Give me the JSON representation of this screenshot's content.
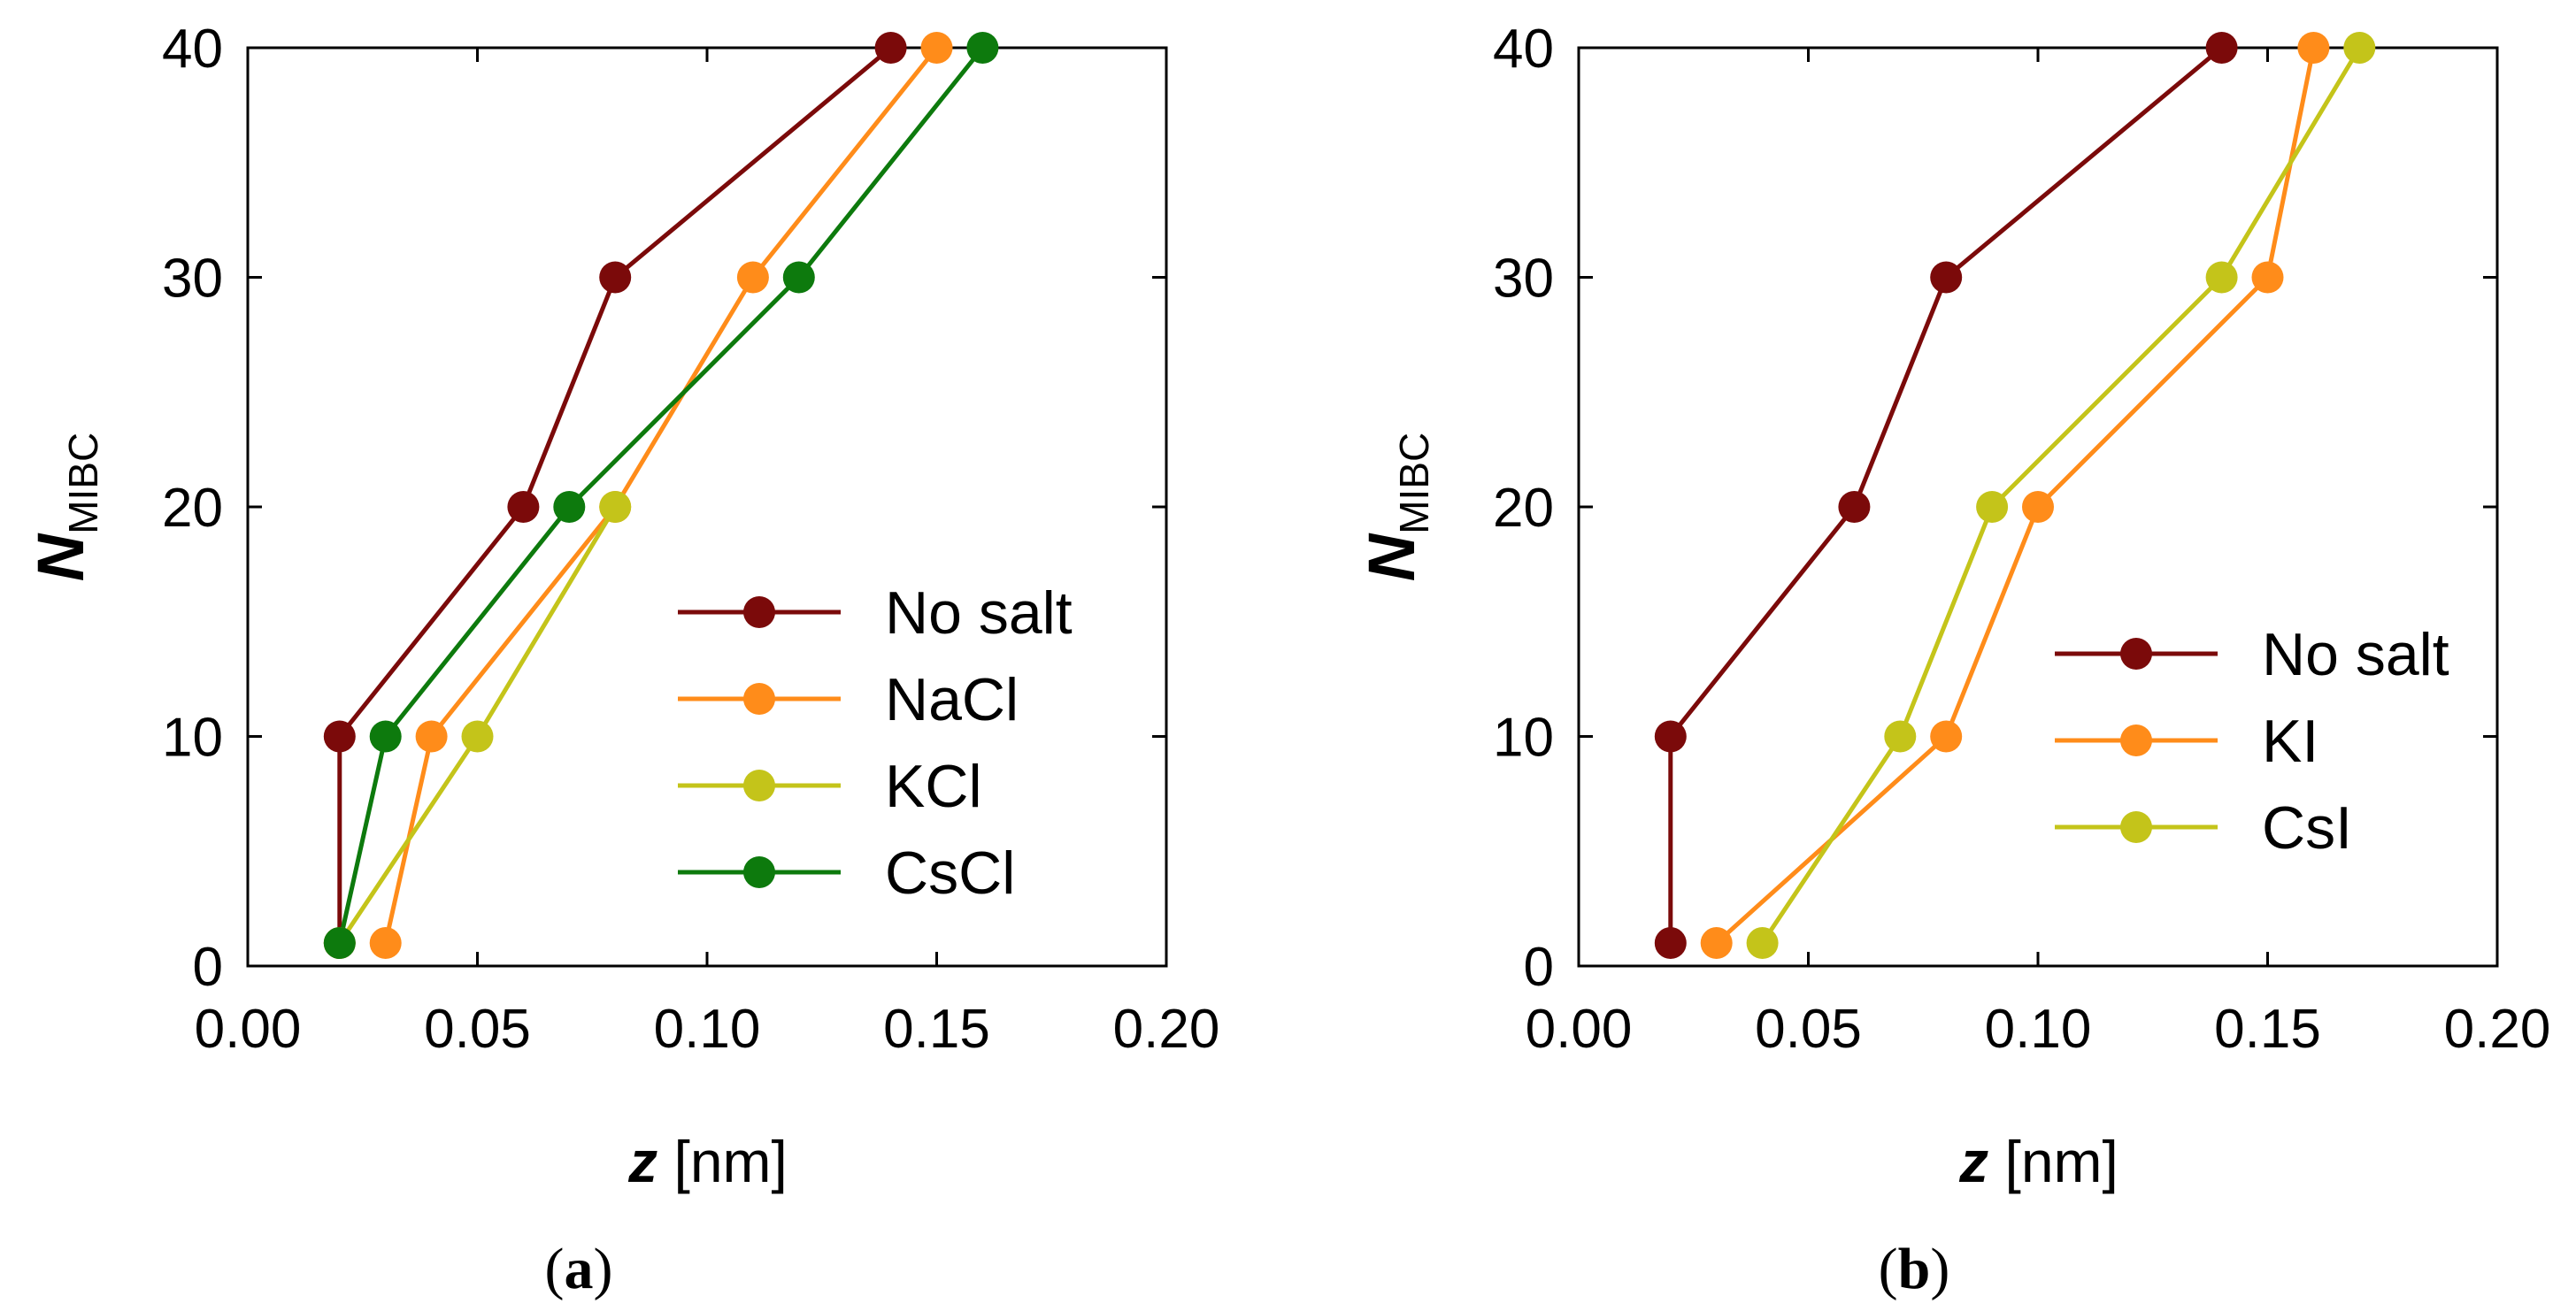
{
  "chart_data": [
    {
      "type": "line",
      "panel_label": "(a)",
      "xlabel_var": "z",
      "xlabel_unit": " [nm]",
      "ylabel_var": "N",
      "ylabel_sub": "MIBC",
      "xlim": [
        0,
        0.2
      ],
      "ylim": [
        0,
        40
      ],
      "xticks": [
        "0.00",
        "0.05",
        "0.10",
        "0.15",
        "0.20"
      ],
      "xtick_values": [
        0,
        0.05,
        0.1,
        0.15,
        0.2
      ],
      "yticks": [
        "0",
        "10",
        "20",
        "30",
        "40"
      ],
      "ytick_values": [
        0,
        10,
        20,
        30,
        40
      ],
      "legend_position": "lower-right",
      "series": [
        {
          "name": "No salt",
          "color": "#7b0a0a",
          "points": [
            [
              0.02,
              1
            ],
            [
              0.02,
              10
            ],
            [
              0.06,
              20
            ],
            [
              0.08,
              30
            ],
            [
              0.14,
              40
            ]
          ]
        },
        {
          "name": "NaCl",
          "color": "#ff8c1a",
          "points": [
            [
              0.03,
              1
            ],
            [
              0.04,
              10
            ],
            [
              0.08,
              20
            ],
            [
              0.11,
              30
            ],
            [
              0.15,
              40
            ]
          ]
        },
        {
          "name": "KCl",
          "color": "#c4c41a",
          "points": [
            [
              0.02,
              1
            ],
            [
              0.05,
              10
            ],
            [
              0.08,
              20
            ]
          ]
        },
        {
          "name": "CsCl",
          "color": "#0d7a0d",
          "points": [
            [
              0.02,
              1
            ],
            [
              0.03,
              10
            ],
            [
              0.07,
              20
            ],
            [
              0.12,
              30
            ],
            [
              0.16,
              40
            ]
          ]
        }
      ]
    },
    {
      "type": "line",
      "panel_label": "(b)",
      "xlabel_var": "z",
      "xlabel_unit": " [nm]",
      "ylabel_var": "N",
      "ylabel_sub": "MIBC",
      "xlim": [
        0,
        0.2
      ],
      "ylim": [
        0,
        40
      ],
      "xticks": [
        "0.00",
        "0.05",
        "0.10",
        "0.15",
        "0.20"
      ],
      "xtick_values": [
        0,
        0.05,
        0.1,
        0.15,
        0.2
      ],
      "yticks": [
        "0",
        "10",
        "20",
        "30",
        "40"
      ],
      "ytick_values": [
        0,
        10,
        20,
        30,
        40
      ],
      "legend_position": "lower-right",
      "series": [
        {
          "name": "No salt",
          "color": "#7b0a0a",
          "points": [
            [
              0.02,
              1
            ],
            [
              0.02,
              10
            ],
            [
              0.06,
              20
            ],
            [
              0.08,
              30
            ],
            [
              0.14,
              40
            ]
          ]
        },
        {
          "name": "KI",
          "color": "#ff8c1a",
          "points": [
            [
              0.03,
              1
            ],
            [
              0.08,
              10
            ],
            [
              0.1,
              20
            ],
            [
              0.15,
              30
            ],
            [
              0.16,
              40
            ]
          ]
        },
        {
          "name": "CsI",
          "color": "#c4c41a",
          "points": [
            [
              0.04,
              1
            ],
            [
              0.07,
              10
            ],
            [
              0.09,
              20
            ],
            [
              0.14,
              30
            ],
            [
              0.17,
              40
            ]
          ]
        }
      ]
    }
  ]
}
